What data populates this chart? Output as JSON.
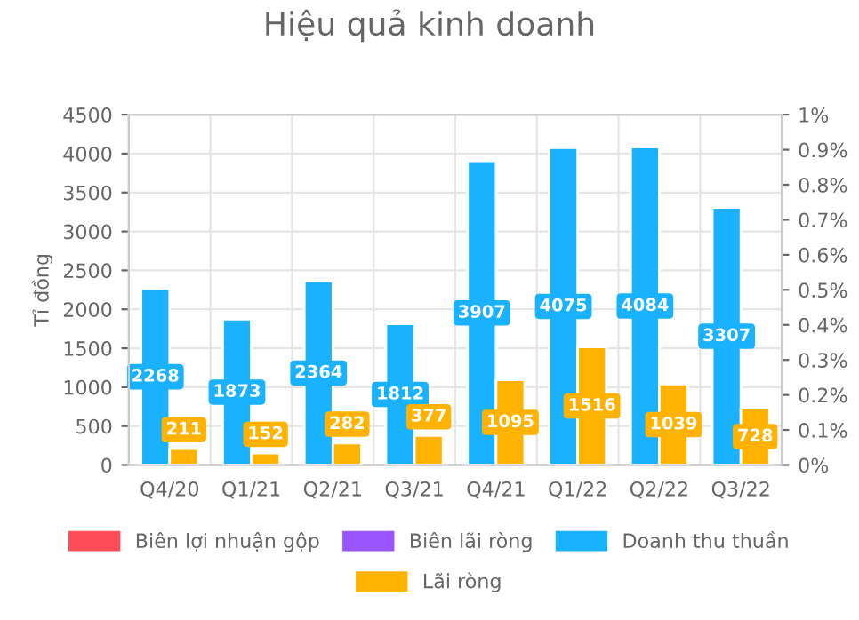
{
  "chart_data": {
    "type": "bar",
    "title": "Hiệu quả kinh doanh",
    "ylabel": "Tỉ đồng",
    "categories": [
      "Q4/20",
      "Q1/21",
      "Q2/21",
      "Q3/21",
      "Q4/21",
      "Q1/22",
      "Q2/22",
      "Q3/22"
    ],
    "series": [
      {
        "name": "Biên lợi nhuận gộp",
        "type": "line",
        "color": "#ff4d5a",
        "values": [
          null,
          null,
          null,
          null,
          null,
          null,
          null,
          null
        ]
      },
      {
        "name": "Biên lãi ròng",
        "type": "line",
        "color": "#9a55ff",
        "values": [
          null,
          null,
          null,
          null,
          null,
          null,
          null,
          null
        ]
      },
      {
        "name": "Doanh thu thuần",
        "color": "#1ab2ff",
        "values": [
          2268,
          1873,
          2364,
          1812,
          3907,
          4075,
          4084,
          3307
        ]
      },
      {
        "name": "Lãi ròng",
        "color": "#ffb300",
        "values": [
          211,
          152,
          282,
          377,
          1095,
          1516,
          1039,
          728
        ]
      }
    ],
    "ylim": [
      0,
      4500
    ],
    "yticks": [
      0,
      500,
      1000,
      1500,
      2000,
      2500,
      3000,
      3500,
      4000,
      4500
    ],
    "y2lim": [
      0,
      1
    ],
    "y2ticks": [
      {
        "value": 0,
        "label": "0%"
      },
      {
        "value": 0.1,
        "label": "0.1%"
      },
      {
        "value": 0.2,
        "label": "0.2%"
      },
      {
        "value": 0.3,
        "label": "0.3%"
      },
      {
        "value": 0.4,
        "label": "0.4%"
      },
      {
        "value": 0.5,
        "label": "0.5%"
      },
      {
        "value": 0.6,
        "label": "0.6%"
      },
      {
        "value": 0.7,
        "label": "0.7%"
      },
      {
        "value": 0.8,
        "label": "0.8%"
      },
      {
        "value": 0.9,
        "label": "0.9%"
      },
      {
        "value": 1,
        "label": "1%"
      }
    ],
    "grid": true,
    "legend": "bottom",
    "data_labels": true
  }
}
